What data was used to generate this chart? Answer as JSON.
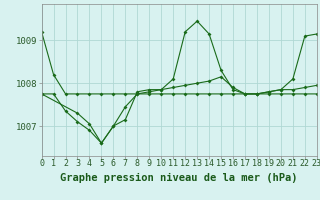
{
  "title": "",
  "xlabel": "Graphe pression niveau de la mer (hPa)",
  "bg_color": "#d8f2f0",
  "line_color": "#1a6b1a",
  "grid_color": "#b0d8d4",
  "hours": [
    0,
    1,
    2,
    3,
    4,
    5,
    6,
    7,
    8,
    9,
    10,
    11,
    12,
    13,
    14,
    15,
    16,
    17,
    18,
    19,
    20,
    21,
    22,
    23
  ],
  "series1": [
    1009.2,
    1008.2,
    1007.75,
    1007.75,
    1007.75,
    1007.75,
    1007.75,
    1007.75,
    1007.75,
    1007.75,
    1007.75,
    1007.75,
    1007.75,
    1007.75,
    1007.75,
    1007.75,
    1007.75,
    1007.75,
    1007.75,
    1007.75,
    1007.75,
    1007.75,
    1007.75,
    1007.75
  ],
  "series2": [
    1007.75,
    1007.75,
    1007.35,
    1007.1,
    1006.9,
    1006.6,
    1007.0,
    1007.45,
    1007.75,
    1007.8,
    1007.85,
    1007.9,
    1007.95,
    1008.0,
    1008.05,
    1008.15,
    1007.9,
    1007.75,
    1007.75,
    1007.8,
    1007.85,
    1007.85,
    1007.9,
    1007.95
  ],
  "series3": [
    1007.75,
    null,
    null,
    1007.3,
    1007.05,
    1006.6,
    1007.0,
    1007.15,
    1007.8,
    1007.85,
    1007.85,
    1008.1,
    1009.2,
    1009.45,
    1009.15,
    1008.3,
    1007.85,
    1007.75,
    1007.75,
    1007.8,
    1007.85,
    1008.1,
    1009.1,
    1009.15
  ],
  "ylim": [
    1006.3,
    1009.85
  ],
  "yticks": [
    1007.0,
    1008.0,
    1009.0
  ],
  "xlim": [
    0,
    23
  ],
  "tick_fontsize": 6.5,
  "label_fontsize": 7.5,
  "figsize": [
    3.2,
    2.0
  ],
  "dpi": 100
}
